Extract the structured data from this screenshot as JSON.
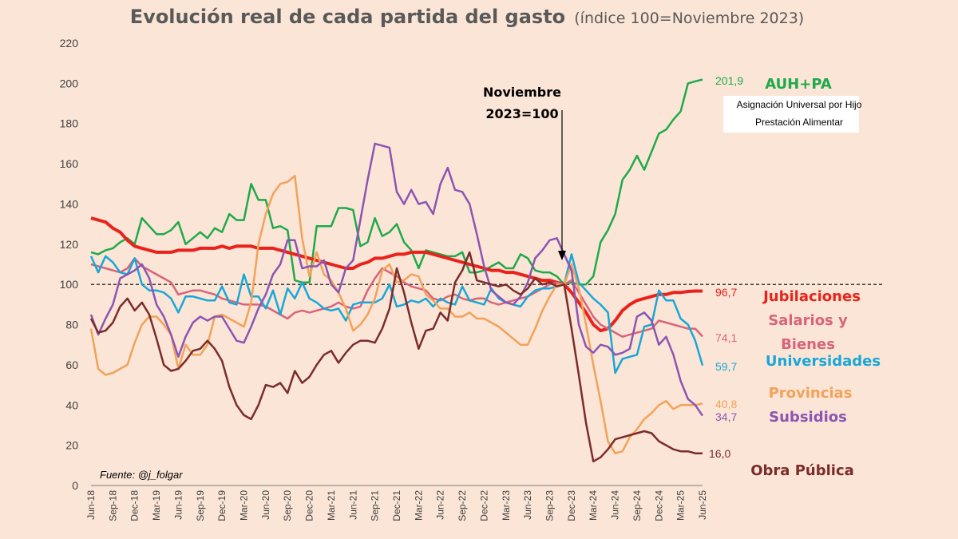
{
  "chart_data": {
    "type": "line",
    "title": "Evolución real de cada partida del gasto",
    "subtitle": "(índice 100=Noviembre 2023)",
    "source": "Fuente: @j_folgar",
    "annotation": [
      "Noviembre",
      "2023=100"
    ],
    "note_lines": [
      "Asignación Universal por Hijo",
      "Prestación Alimentar"
    ],
    "ylim": [
      0,
      220
    ],
    "yticks": [
      0,
      20,
      40,
      60,
      80,
      100,
      120,
      140,
      160,
      180,
      200,
      220
    ],
    "x": [
      "Jun-18",
      "Jul-18",
      "Aug-18",
      "Sep-18",
      "Oct-18",
      "Nov-18",
      "Dec-18",
      "Jan-19",
      "Feb-19",
      "Mar-19",
      "Apr-19",
      "May-19",
      "Jun-19",
      "Jul-19",
      "Aug-19",
      "Sep-19",
      "Oct-19",
      "Nov-19",
      "Dec-19",
      "Jan-20",
      "Feb-20",
      "Mar-20",
      "Apr-20",
      "May-20",
      "Jun-20",
      "Jul-20",
      "Aug-20",
      "Sep-20",
      "Oct-20",
      "Nov-20",
      "Dec-20",
      "Jan-21",
      "Feb-21",
      "Mar-21",
      "Apr-21",
      "May-21",
      "Jun-21",
      "Jul-21",
      "Aug-21",
      "Sep-21",
      "Oct-21",
      "Nov-21",
      "Dec-21",
      "Jan-22",
      "Feb-22",
      "Mar-22",
      "Apr-22",
      "May-22",
      "Jun-22",
      "Jul-22",
      "Aug-22",
      "Sep-22",
      "Oct-22",
      "Nov-22",
      "Dec-22",
      "Jan-23",
      "Feb-23",
      "Mar-23",
      "Apr-23",
      "May-23",
      "Jun-23",
      "Jul-23",
      "Aug-23",
      "Sep-23",
      "Oct-23",
      "Nov-23",
      "Dec-23",
      "Jan-24",
      "Feb-24",
      "Mar-24",
      "Apr-24",
      "May-24",
      "Jun-24",
      "Jul-24",
      "Aug-24",
      "Sep-24",
      "Oct-24",
      "Nov-24",
      "Dec-24",
      "Jan-25",
      "Feb-25",
      "Mar-25",
      "Apr-25",
      "May-25",
      "Jun-25"
    ],
    "xticks": [
      "Jun-18",
      "Sep-18",
      "Dec-18",
      "Mar-19",
      "Jun-19",
      "Sep-19",
      "Dec-19",
      "Mar-20",
      "Jun-20",
      "Sep-20",
      "Dec-20",
      "Mar-21",
      "Jun-21",
      "Sep-21",
      "Dec-21",
      "Mar-22",
      "Jun-22",
      "Sep-22",
      "Dec-22",
      "Mar-23",
      "Jun-23",
      "Sep-23",
      "Dec-23",
      "Mar-24",
      "Jun-24",
      "Sep-24",
      "Dec-24",
      "Mar-25",
      "Jun-25"
    ],
    "reference_line": 100,
    "series": [
      {
        "name": "AUH+PA",
        "color": "#1eaa4a",
        "end_label": "201,9",
        "values": [
          116,
          115,
          117,
          118,
          121,
          123,
          120,
          133,
          129,
          125,
          125,
          127,
          131,
          120,
          123,
          126,
          123,
          128,
          126,
          135,
          132,
          132,
          150,
          142,
          142,
          128,
          129,
          127,
          102,
          101,
          101,
          129,
          129,
          129,
          138,
          138,
          137,
          119,
          121,
          133,
          124,
          126,
          130,
          121,
          117,
          108,
          117,
          116,
          115,
          114,
          114,
          116,
          106,
          106,
          107,
          109,
          111,
          108,
          108,
          115,
          113,
          107,
          106,
          106,
          104,
          100,
          101,
          100,
          100,
          104,
          121,
          127,
          135,
          152,
          157,
          164,
          157,
          166,
          175,
          177,
          182,
          186,
          200,
          201,
          201.9
        ]
      },
      {
        "name": "Jubilaciones",
        "color": "#e8231c",
        "end_label": "96,7",
        "values": [
          133,
          132,
          131,
          128,
          126,
          122,
          119,
          118,
          117,
          116,
          116,
          116,
          117,
          117,
          117,
          118,
          118,
          118,
          119,
          118,
          119,
          119,
          119,
          118,
          118,
          118,
          117,
          116,
          115,
          114,
          113,
          112,
          111,
          110,
          109,
          108,
          108,
          110,
          111,
          113,
          113,
          114,
          115,
          115,
          116,
          116,
          116,
          115,
          114,
          113,
          112,
          111,
          110,
          109,
          108,
          107,
          107,
          106,
          106,
          105,
          104,
          103,
          102,
          102,
          101,
          100,
          96,
          91,
          86,
          80,
          77,
          78,
          82,
          87,
          90,
          92,
          93,
          94,
          95,
          95,
          96,
          96,
          96.5,
          96.7,
          96.7
        ]
      },
      {
        "name": "Salarios y Bienes",
        "color": "#d8647a",
        "end_label": "74,1",
        "values": [
          110,
          109,
          108,
          107,
          106,
          108,
          113,
          109,
          107,
          105,
          103,
          101,
          95,
          96,
          97,
          97,
          96,
          95,
          93,
          92,
          91,
          90,
          90,
          90,
          89,
          87,
          85,
          83,
          86,
          87,
          86,
          87,
          88,
          89,
          91,
          89,
          88,
          89,
          97,
          103,
          108,
          106,
          104,
          101,
          99,
          98,
          97,
          93,
          92,
          94,
          95,
          93,
          92,
          93,
          93,
          91,
          90,
          91,
          92,
          93,
          94,
          96,
          98,
          100,
          101,
          100,
          102,
          96,
          90,
          84,
          80,
          78,
          76,
          74,
          75,
          76,
          77,
          78,
          82,
          81,
          80,
          79,
          78,
          78,
          74.1
        ]
      },
      {
        "name": "Universidades",
        "color": "#18a7d8",
        "end_label": "59,7",
        "values": [
          114,
          106,
          114,
          111,
          106,
          105,
          113,
          100,
          97,
          97,
          96,
          93,
          86,
          94,
          94,
          93,
          92,
          92,
          99,
          91,
          90,
          105,
          94,
          94,
          88,
          97,
          85,
          98,
          93,
          101,
          93,
          91,
          88,
          87,
          88,
          82,
          90,
          91,
          91,
          91,
          93,
          100,
          89,
          90,
          92,
          91,
          93,
          89,
          93,
          91,
          90,
          99,
          92,
          91,
          90,
          98,
          93,
          91,
          90,
          89,
          94,
          97,
          98,
          98,
          99,
          100,
          115,
          101,
          97,
          93,
          90,
          86,
          56,
          63,
          64,
          65,
          79,
          80,
          97,
          92,
          92,
          83,
          80,
          72,
          59.7
        ]
      },
      {
        "name": "Provincias",
        "color": "#f2a25a",
        "end_label": "40,8",
        "values": [
          78,
          58,
          55,
          56,
          58,
          60,
          71,
          80,
          84,
          84,
          80,
          75,
          58,
          70,
          65,
          65,
          70,
          84,
          85,
          83,
          81,
          79,
          91,
          120,
          135,
          145,
          150,
          151,
          154,
          123,
          104,
          116,
          105,
          102,
          96,
          88,
          77,
          80,
          85,
          93,
          107,
          110,
          101,
          102,
          105,
          104,
          95,
          92,
          88,
          88,
          84,
          84,
          86,
          83,
          83,
          81,
          79,
          76,
          73,
          70,
          70,
          78,
          87,
          94,
          100,
          100,
          110,
          98,
          80,
          60,
          42,
          22,
          16,
          17,
          24,
          28,
          33,
          36,
          40,
          42,
          38,
          40,
          40,
          40,
          40.8
        ]
      },
      {
        "name": "Subsidios",
        "color": "#8b55b3",
        "end_label": "34,7",
        "values": [
          85,
          75,
          83,
          90,
          103,
          105,
          107,
          110,
          103,
          90,
          84,
          75,
          64,
          74,
          81,
          84,
          82,
          84,
          84,
          78,
          72,
          71,
          79,
          88,
          95,
          105,
          110,
          122,
          122,
          108,
          109,
          109,
          112,
          100,
          96,
          108,
          112,
          132,
          152,
          170,
          169,
          168,
          146,
          140,
          147,
          140,
          141,
          135,
          150,
          158,
          147,
          146,
          140,
          125,
          109,
          97,
          94,
          91,
          90,
          94,
          101,
          113,
          117,
          122,
          123,
          115,
          107,
          80,
          69,
          66,
          70,
          69,
          65,
          66,
          68,
          84,
          86,
          82,
          70,
          74,
          65,
          52,
          43,
          40,
          34.7
        ]
      },
      {
        "name": "Obra Pública",
        "color": "#7b2c2a",
        "end_label": "16,0",
        "values": [
          83,
          76,
          77,
          81,
          89,
          93,
          87,
          91,
          85,
          73,
          60,
          57,
          58,
          62,
          67,
          68,
          72,
          68,
          62,
          49,
          40,
          35,
          33,
          40,
          50,
          49,
          51,
          46,
          57,
          51,
          54,
          60,
          65,
          67,
          61,
          66,
          70,
          72,
          72,
          71,
          78,
          88,
          108,
          96,
          81,
          68,
          77,
          78,
          86,
          82,
          101,
          107,
          116,
          102,
          101,
          100,
          99,
          100,
          97,
          95,
          98,
          103,
          100,
          101,
          99,
          100,
          78,
          55,
          31,
          12,
          14,
          18,
          23,
          24,
          25,
          26,
          27,
          26,
          22,
          20,
          18,
          17,
          17,
          16,
          16.0
        ]
      }
    ]
  }
}
